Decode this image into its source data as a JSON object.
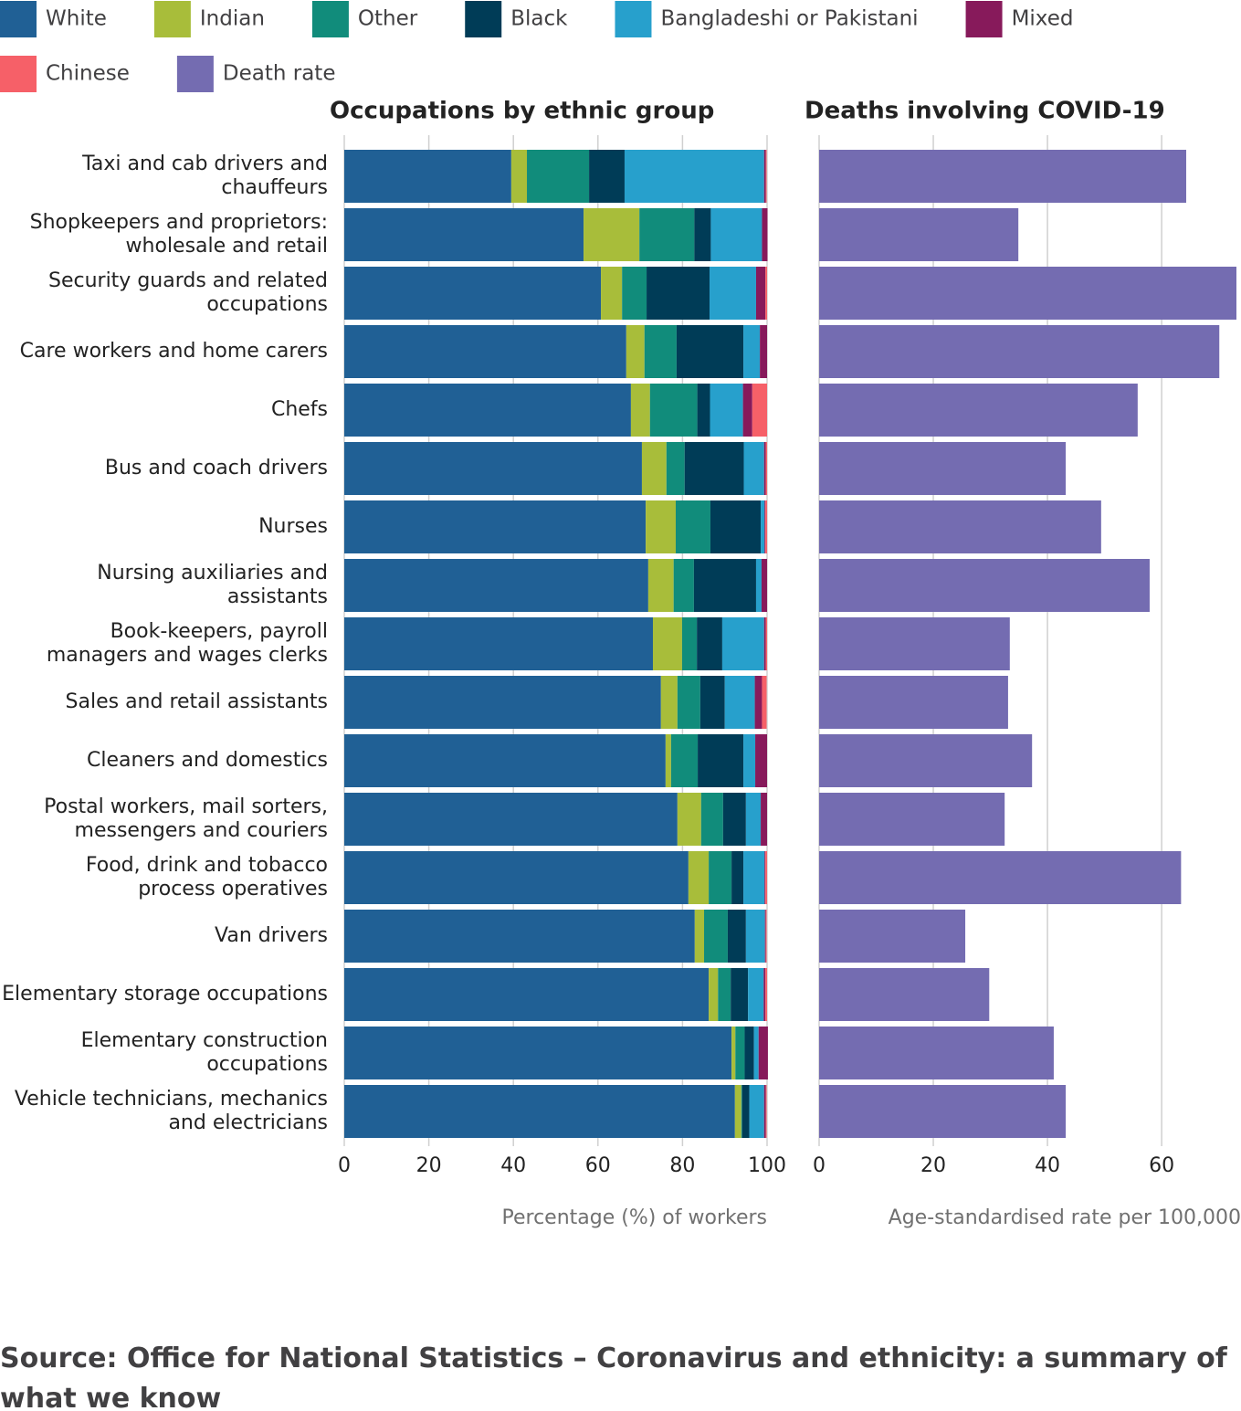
{
  "chart_data": [
    {
      "type": "bar",
      "orientation": "horizontal",
      "stacked": true,
      "title": "Occupations by ethnic group",
      "x_label": "Percentage (%) of workers",
      "categories": [
        "Taxi and cab drivers and\nchauffeurs",
        "Shopkeepers and proprietors:\nwholesale and retail",
        "Security guards and related\noccupations",
        "Care workers and home carers",
        "Chefs",
        "Bus and coach drivers",
        "Nurses",
        "Nursing auxiliaries and\nassistants",
        "Book-keepers, payroll\nmanagers and wages clerks",
        "Sales and retail assistants",
        "Cleaners and domestics",
        "Postal workers, mail sorters,\nmessengers and couriers",
        "Food, drink and tobacco\nprocess operatives",
        "Van drivers",
        "Elementary storage occupations",
        "Elementary construction\noccupations",
        "Vehicle technicians, mechanics\nand electricians"
      ],
      "series": [
        {
          "name": "White",
          "color": "#206095",
          "values": [
            39.5,
            56.6,
            60.7,
            66.7,
            67.8,
            70.4,
            71.3,
            71.9,
            73,
            74.9,
            76,
            78.8,
            81.4,
            82.9,
            86.2,
            91.6,
            92.4
          ]
        },
        {
          "name": "Indian",
          "color": "#a8bd3a",
          "values": [
            3.7,
            13.2,
            5,
            4.3,
            4.5,
            5.8,
            7.1,
            6,
            6.9,
            3.9,
            1.3,
            5.6,
            4.8,
            2.2,
            2.2,
            0.9,
            1.5
          ]
        },
        {
          "name": "Other",
          "color": "#118c7b",
          "values": [
            14.7,
            13,
            5.8,
            7.6,
            11.2,
            4.3,
            8.2,
            4.8,
            3.5,
            5.4,
            6.3,
            5.2,
            5.4,
            5.6,
            3,
            2.2,
            0.2
          ]
        },
        {
          "name": "Black",
          "color": "#003c57",
          "values": [
            8.4,
            3.9,
            14.9,
            15.8,
            3,
            14,
            11.9,
            14.7,
            6,
            5.8,
            10.8,
            5.4,
            2.8,
            4.3,
            4.1,
            2.2,
            1.7
          ]
        },
        {
          "name": "Bangladeshi or Pakistani",
          "color": "#27a0cc",
          "values": [
            33,
            12.1,
            11,
            3.9,
            7.8,
            4.8,
            0.9,
            1.3,
            9.9,
            7.1,
            2.8,
            3.5,
            5,
            4.5,
            3.7,
            1.1,
            3.5
          ]
        },
        {
          "name": "Mixed",
          "color": "#871a5b",
          "values": [
            0.4,
            1.3,
            2.2,
            1.7,
            2.2,
            0.4,
            0.2,
            1.3,
            0.4,
            1.7,
            2.8,
            1.5,
            0.2,
            0.2,
            0.4,
            2.2,
            0.4
          ]
        },
        {
          "name": "Chinese",
          "color": "#f66068",
          "values": [
            0.2,
            0,
            0.4,
            0,
            3.5,
            0.3,
            0.4,
            0,
            0.3,
            1.1,
            0,
            0,
            0.4,
            0.2,
            0.4,
            0,
            0.2
          ]
        }
      ],
      "xlim": [
        0,
        100
      ],
      "xticks": [
        0,
        20,
        40,
        60,
        80,
        100
      ],
      "grid": true
    },
    {
      "type": "bar",
      "orientation": "horizontal",
      "title": "Deaths involving COVID-19",
      "x_label": "Age-standardised rate per 100,000",
      "series": [
        {
          "name": "Death rate",
          "color": "#746cb1",
          "values": [
            64.3,
            34.9,
            73.1,
            70.1,
            55.8,
            43.2,
            49.4,
            57.9,
            33.4,
            33.1,
            37.3,
            32.5,
            63.4,
            25.6,
            29.8,
            41.1,
            43.2
          ]
        }
      ],
      "xlim": [
        0,
        73.9
      ],
      "xticks": [
        0,
        20,
        40,
        60
      ],
      "grid": true
    }
  ],
  "source": "Source: Office for National Statistics – Coronavirus and ethnicity: a summary of what we know"
}
